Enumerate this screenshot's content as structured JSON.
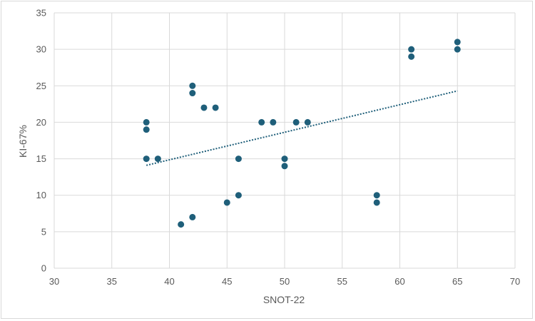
{
  "chart_data": {
    "type": "scatter",
    "title": "",
    "xlabel": "SNOT-22",
    "ylabel": "KI-67%",
    "xlim": [
      30,
      70
    ],
    "ylim": [
      0,
      35
    ],
    "xticks": [
      30,
      35,
      40,
      45,
      50,
      55,
      60,
      65,
      70
    ],
    "yticks": [
      0,
      5,
      10,
      15,
      20,
      25,
      30,
      35
    ],
    "grid": true,
    "legend": "none",
    "marker_color": "#1f5f7a",
    "trendline": {
      "type": "linear",
      "style": "dotted",
      "color": "#1f5f7a",
      "x_range": [
        38,
        65
      ],
      "y_values": [
        14.1,
        24.3
      ]
    },
    "series": [
      {
        "points": [
          {
            "x": 38,
            "y": 20
          },
          {
            "x": 38,
            "y": 19
          },
          {
            "x": 38,
            "y": 15
          },
          {
            "x": 39,
            "y": 15
          },
          {
            "x": 41,
            "y": 6
          },
          {
            "x": 42,
            "y": 25
          },
          {
            "x": 42,
            "y": 24
          },
          {
            "x": 42,
            "y": 7
          },
          {
            "x": 43,
            "y": 22
          },
          {
            "x": 44,
            "y": 22
          },
          {
            "x": 45,
            "y": 9
          },
          {
            "x": 46,
            "y": 15
          },
          {
            "x": 46,
            "y": 10
          },
          {
            "x": 48,
            "y": 20
          },
          {
            "x": 49,
            "y": 20
          },
          {
            "x": 50,
            "y": 15
          },
          {
            "x": 50,
            "y": 14
          },
          {
            "x": 51,
            "y": 20
          },
          {
            "x": 52,
            "y": 20
          },
          {
            "x": 58,
            "y": 10
          },
          {
            "x": 58,
            "y": 9
          },
          {
            "x": 61,
            "y": 30
          },
          {
            "x": 61,
            "y": 29
          },
          {
            "x": 65,
            "y": 31
          },
          {
            "x": 65,
            "y": 30
          }
        ]
      }
    ]
  }
}
